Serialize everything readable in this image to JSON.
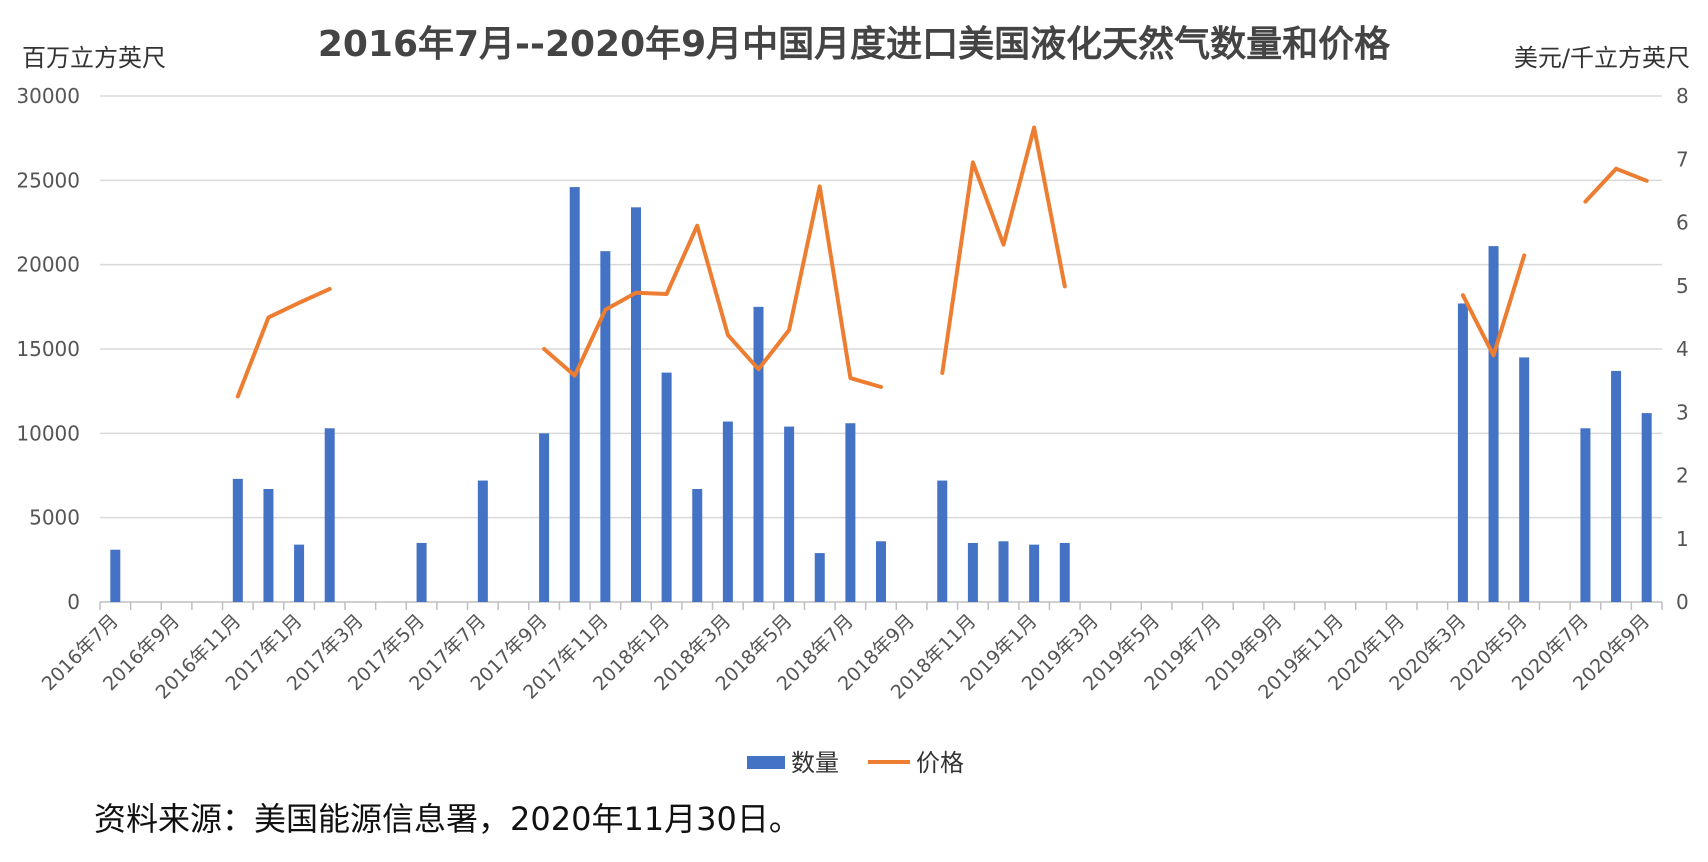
{
  "chart_data": {
    "type": "bar+line",
    "title": "2016年7月--2020年9月中国月度进口美国液化天然气数量和价格",
    "y_left_label": "百万立方英尺",
    "y_right_label": "美元/千立方英尺",
    "y_left_ticks": [
      "0",
      "5000",
      "10000",
      "15000",
      "20000",
      "25000",
      "30000"
    ],
    "y_right_ticks": [
      "0",
      "1",
      "2",
      "3",
      "4",
      "5",
      "6",
      "7",
      "8"
    ],
    "ylim_left": [
      0,
      30000
    ],
    "ylim_right": [
      0,
      8
    ],
    "grid": true,
    "legend_position": "bottom",
    "categories": [
      "2016年7月",
      "2016年8月",
      "2016年9月",
      "2016年10月",
      "2016年11月",
      "2016年12月",
      "2017年1月",
      "2017年2月",
      "2017年3月",
      "2017年4月",
      "2017年5月",
      "2017年6月",
      "2017年7月",
      "2017年8月",
      "2017年9月",
      "2017年10月",
      "2017年11月",
      "2017年12月",
      "2018年1月",
      "2018年2月",
      "2018年3月",
      "2018年4月",
      "2018年5月",
      "2018年6月",
      "2018年7月",
      "2018年8月",
      "2018年9月",
      "2018年10月",
      "2018年11月",
      "2018年12月",
      "2019年1月",
      "2019年2月",
      "2019年3月",
      "2019年4月",
      "2019年5月",
      "2019年6月",
      "2019年7月",
      "2019年8月",
      "2019年9月",
      "2019年10月",
      "2019年11月",
      "2019年12月",
      "2020年1月",
      "2020年2月",
      "2020年3月",
      "2020年4月",
      "2020年5月",
      "2020年6月",
      "2020年7月",
      "2020年8月",
      "2020年9月"
    ],
    "x_tick_labels": [
      "2016年7月",
      "2016年9月",
      "2016年11月",
      "2017年1月",
      "2017年3月",
      "2017年5月",
      "2017年7月",
      "2017年9月",
      "2017年11月",
      "2018年1月",
      "2018年3月",
      "2018年5月",
      "2018年7月",
      "2018年9月",
      "2018年11月",
      "2019年1月",
      "2019年3月",
      "2019年5月",
      "2019年7月",
      "2019年9月",
      "2019年11月",
      "2020年1月",
      "2020年3月",
      "2020年5月",
      "2020年7月",
      "2020年9月"
    ],
    "series": [
      {
        "name": "数量",
        "type": "bar",
        "axis": "left",
        "color": "#4472C4",
        "values": [
          3100,
          0,
          0,
          0,
          7300,
          6700,
          3400,
          10300,
          0,
          0,
          3500,
          0,
          7200,
          0,
          10000,
          24600,
          20800,
          23400,
          13600,
          6700,
          10700,
          17500,
          10400,
          2900,
          10600,
          3600,
          0,
          7200,
          3500,
          3600,
          3400,
          3500,
          0,
          0,
          0,
          0,
          0,
          0,
          0,
          0,
          0,
          0,
          0,
          0,
          17700,
          21100,
          14500,
          0,
          10300,
          13700,
          11200
        ]
      },
      {
        "name": "价格",
        "type": "line",
        "axis": "right",
        "color": "#ED7D31",
        "values": [
          null,
          null,
          null,
          null,
          3.25,
          4.5,
          4.73,
          4.95,
          null,
          null,
          null,
          null,
          null,
          null,
          4.0,
          3.58,
          4.62,
          4.89,
          4.87,
          5.95,
          4.22,
          3.68,
          4.3,
          6.57,
          3.54,
          3.4,
          null,
          3.62,
          6.95,
          5.65,
          7.5,
          4.99,
          null,
          null,
          null,
          null,
          null,
          null,
          null,
          null,
          null,
          null,
          null,
          null,
          4.85,
          3.9,
          5.48,
          null,
          6.33,
          6.85,
          6.66
        ]
      }
    ]
  },
  "source_note": "资料来源：美国能源信息署，2020年11月30日。"
}
